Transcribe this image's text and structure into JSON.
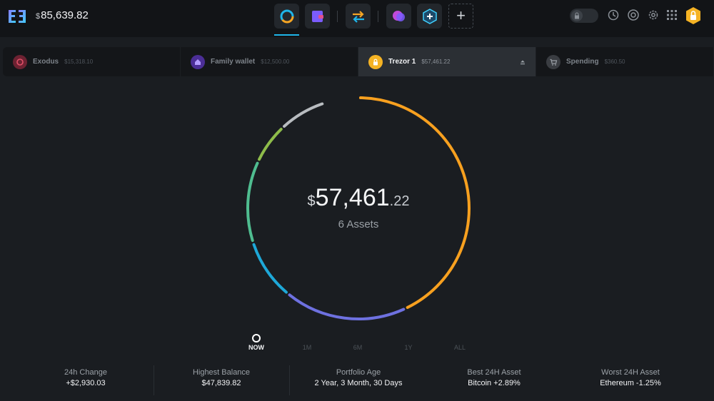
{
  "header": {
    "balance_currency": "$",
    "balance_value": "85,639.82",
    "nav": [
      {
        "id": "portfolio",
        "icon": "portfolio-ring-icon",
        "active": true
      },
      {
        "id": "wallet",
        "icon": "wallet-icon"
      },
      {
        "id": "exchange",
        "icon": "exchange-arrows-icon"
      },
      {
        "id": "apps",
        "icon": "apps-chat-icon"
      },
      {
        "id": "add-app",
        "icon": "hex-plus-icon"
      },
      {
        "id": "add",
        "icon": "plus-icon",
        "label": "+"
      }
    ],
    "tools": [
      "lock-toggle",
      "history-icon",
      "support-icon",
      "settings-icon",
      "grid-icon",
      "profile-lock-icon"
    ]
  },
  "wallets": [
    {
      "name": "Exodus",
      "balance": "$15,318.10",
      "color": "#c2334d",
      "icon": "exodus-icon"
    },
    {
      "name": "Family wallet",
      "balance": "$12,500.00",
      "color": "#6b3fd0",
      "icon": "home-icon"
    },
    {
      "name": "Trezor 1",
      "balance": "$57,461.22",
      "color": "#f5b324",
      "icon": "lock-icon",
      "active": true
    },
    {
      "name": "Spending",
      "balance": "$360.50",
      "color": "#55585d",
      "icon": "cart-icon"
    }
  ],
  "portfolio": {
    "currency": "$",
    "integer": "57,461",
    "decimal": ".22",
    "assets_label": "6 Assets"
  },
  "ring_segments": [
    {
      "color": "#f7a01f",
      "share": 0.43
    },
    {
      "color": "#6e71e0",
      "share": 0.18
    },
    {
      "color": "#1ea8d8",
      "share": 0.09
    },
    {
      "color": "#4fbd90",
      "share": 0.12
    },
    {
      "color": "#8ebc4a",
      "share": 0.06
    },
    {
      "color": "#b8bcc0",
      "share": 0.07
    }
  ],
  "timeline": [
    {
      "label": "NOW",
      "active": true
    },
    {
      "label": "1M"
    },
    {
      "label": "6M"
    },
    {
      "label": "1Y"
    },
    {
      "label": "ALL"
    }
  ],
  "stats": [
    {
      "label": "24h Change",
      "value": "+$2,930.03"
    },
    {
      "label": "Highest Balance",
      "value": "$47,839.82"
    },
    {
      "label": "Portfolio Age",
      "value": "2 Year, 3 Month, 30 Days"
    },
    {
      "label": "Best 24H Asset",
      "value": "Bitcoin +2.89%"
    },
    {
      "label": "Worst 24H Asset",
      "value": "Ethereum -1.25%"
    }
  ]
}
